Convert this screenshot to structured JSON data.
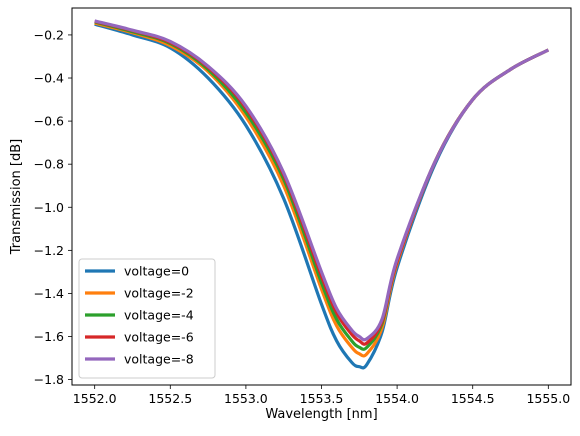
{
  "chart_data": {
    "type": "line",
    "title": "",
    "xlabel": "Wavelength [nm]",
    "ylabel": "Transmission [dB]",
    "xlim": [
      1551.85,
      1555.15
    ],
    "ylim": [
      -1.825,
      -0.075
    ],
    "xticks": [
      1552.0,
      1552.5,
      1553.0,
      1553.5,
      1554.0,
      1554.5,
      1555.0
    ],
    "xtick_labels": [
      "1552.0",
      "1552.5",
      "1553.0",
      "1553.5",
      "1554.0",
      "1554.5",
      "1555.0"
    ],
    "yticks": [
      -1.8,
      -1.6,
      -1.4,
      -1.2,
      -1.0,
      -0.8,
      -0.6,
      -0.4,
      -0.2
    ],
    "ytick_labels": [
      "−1.8",
      "−1.6",
      "−1.4",
      "−1.2",
      "−1.0",
      "−0.8",
      "−0.6",
      "−0.4",
      "−0.2"
    ],
    "grid": false,
    "legend_position": "lower-left",
    "x": [
      1552.0,
      1552.25,
      1552.5,
      1552.75,
      1553.0,
      1553.25,
      1553.5,
      1553.6,
      1553.7,
      1553.75,
      1553.8,
      1553.9,
      1554.0,
      1554.25,
      1554.5,
      1554.75,
      1555.0
    ],
    "series": [
      {
        "name": "voltage=0",
        "color": "#1f77b4",
        "values": [
          -0.15,
          -0.2,
          -0.26,
          -0.4,
          -0.62,
          -0.96,
          -1.45,
          -1.62,
          -1.72,
          -1.74,
          -1.73,
          -1.58,
          -1.28,
          -0.8,
          -0.5,
          -0.36,
          -0.27
        ]
      },
      {
        "name": "voltage=-2",
        "color": "#ff7f0e",
        "values": [
          -0.145,
          -0.19,
          -0.25,
          -0.37,
          -0.58,
          -0.9,
          -1.38,
          -1.55,
          -1.65,
          -1.68,
          -1.68,
          -1.56,
          -1.26,
          -0.79,
          -0.5,
          -0.36,
          -0.27
        ]
      },
      {
        "name": "voltage=-4",
        "color": "#2ca02c",
        "values": [
          -0.14,
          -0.185,
          -0.24,
          -0.36,
          -0.56,
          -0.87,
          -1.35,
          -1.52,
          -1.62,
          -1.65,
          -1.65,
          -1.54,
          -1.25,
          -0.79,
          -0.5,
          -0.36,
          -0.27
        ]
      },
      {
        "name": "voltage=-6",
        "color": "#d62728",
        "values": [
          -0.137,
          -0.18,
          -0.235,
          -0.35,
          -0.54,
          -0.85,
          -1.32,
          -1.49,
          -1.59,
          -1.62,
          -1.63,
          -1.53,
          -1.25,
          -0.79,
          -0.5,
          -0.36,
          -0.27
        ]
      },
      {
        "name": "voltage=-8",
        "color": "#9467bd",
        "values": [
          -0.135,
          -0.178,
          -0.23,
          -0.345,
          -0.53,
          -0.84,
          -1.3,
          -1.47,
          -1.57,
          -1.6,
          -1.61,
          -1.52,
          -1.24,
          -0.79,
          -0.5,
          -0.36,
          -0.27
        ]
      }
    ]
  }
}
